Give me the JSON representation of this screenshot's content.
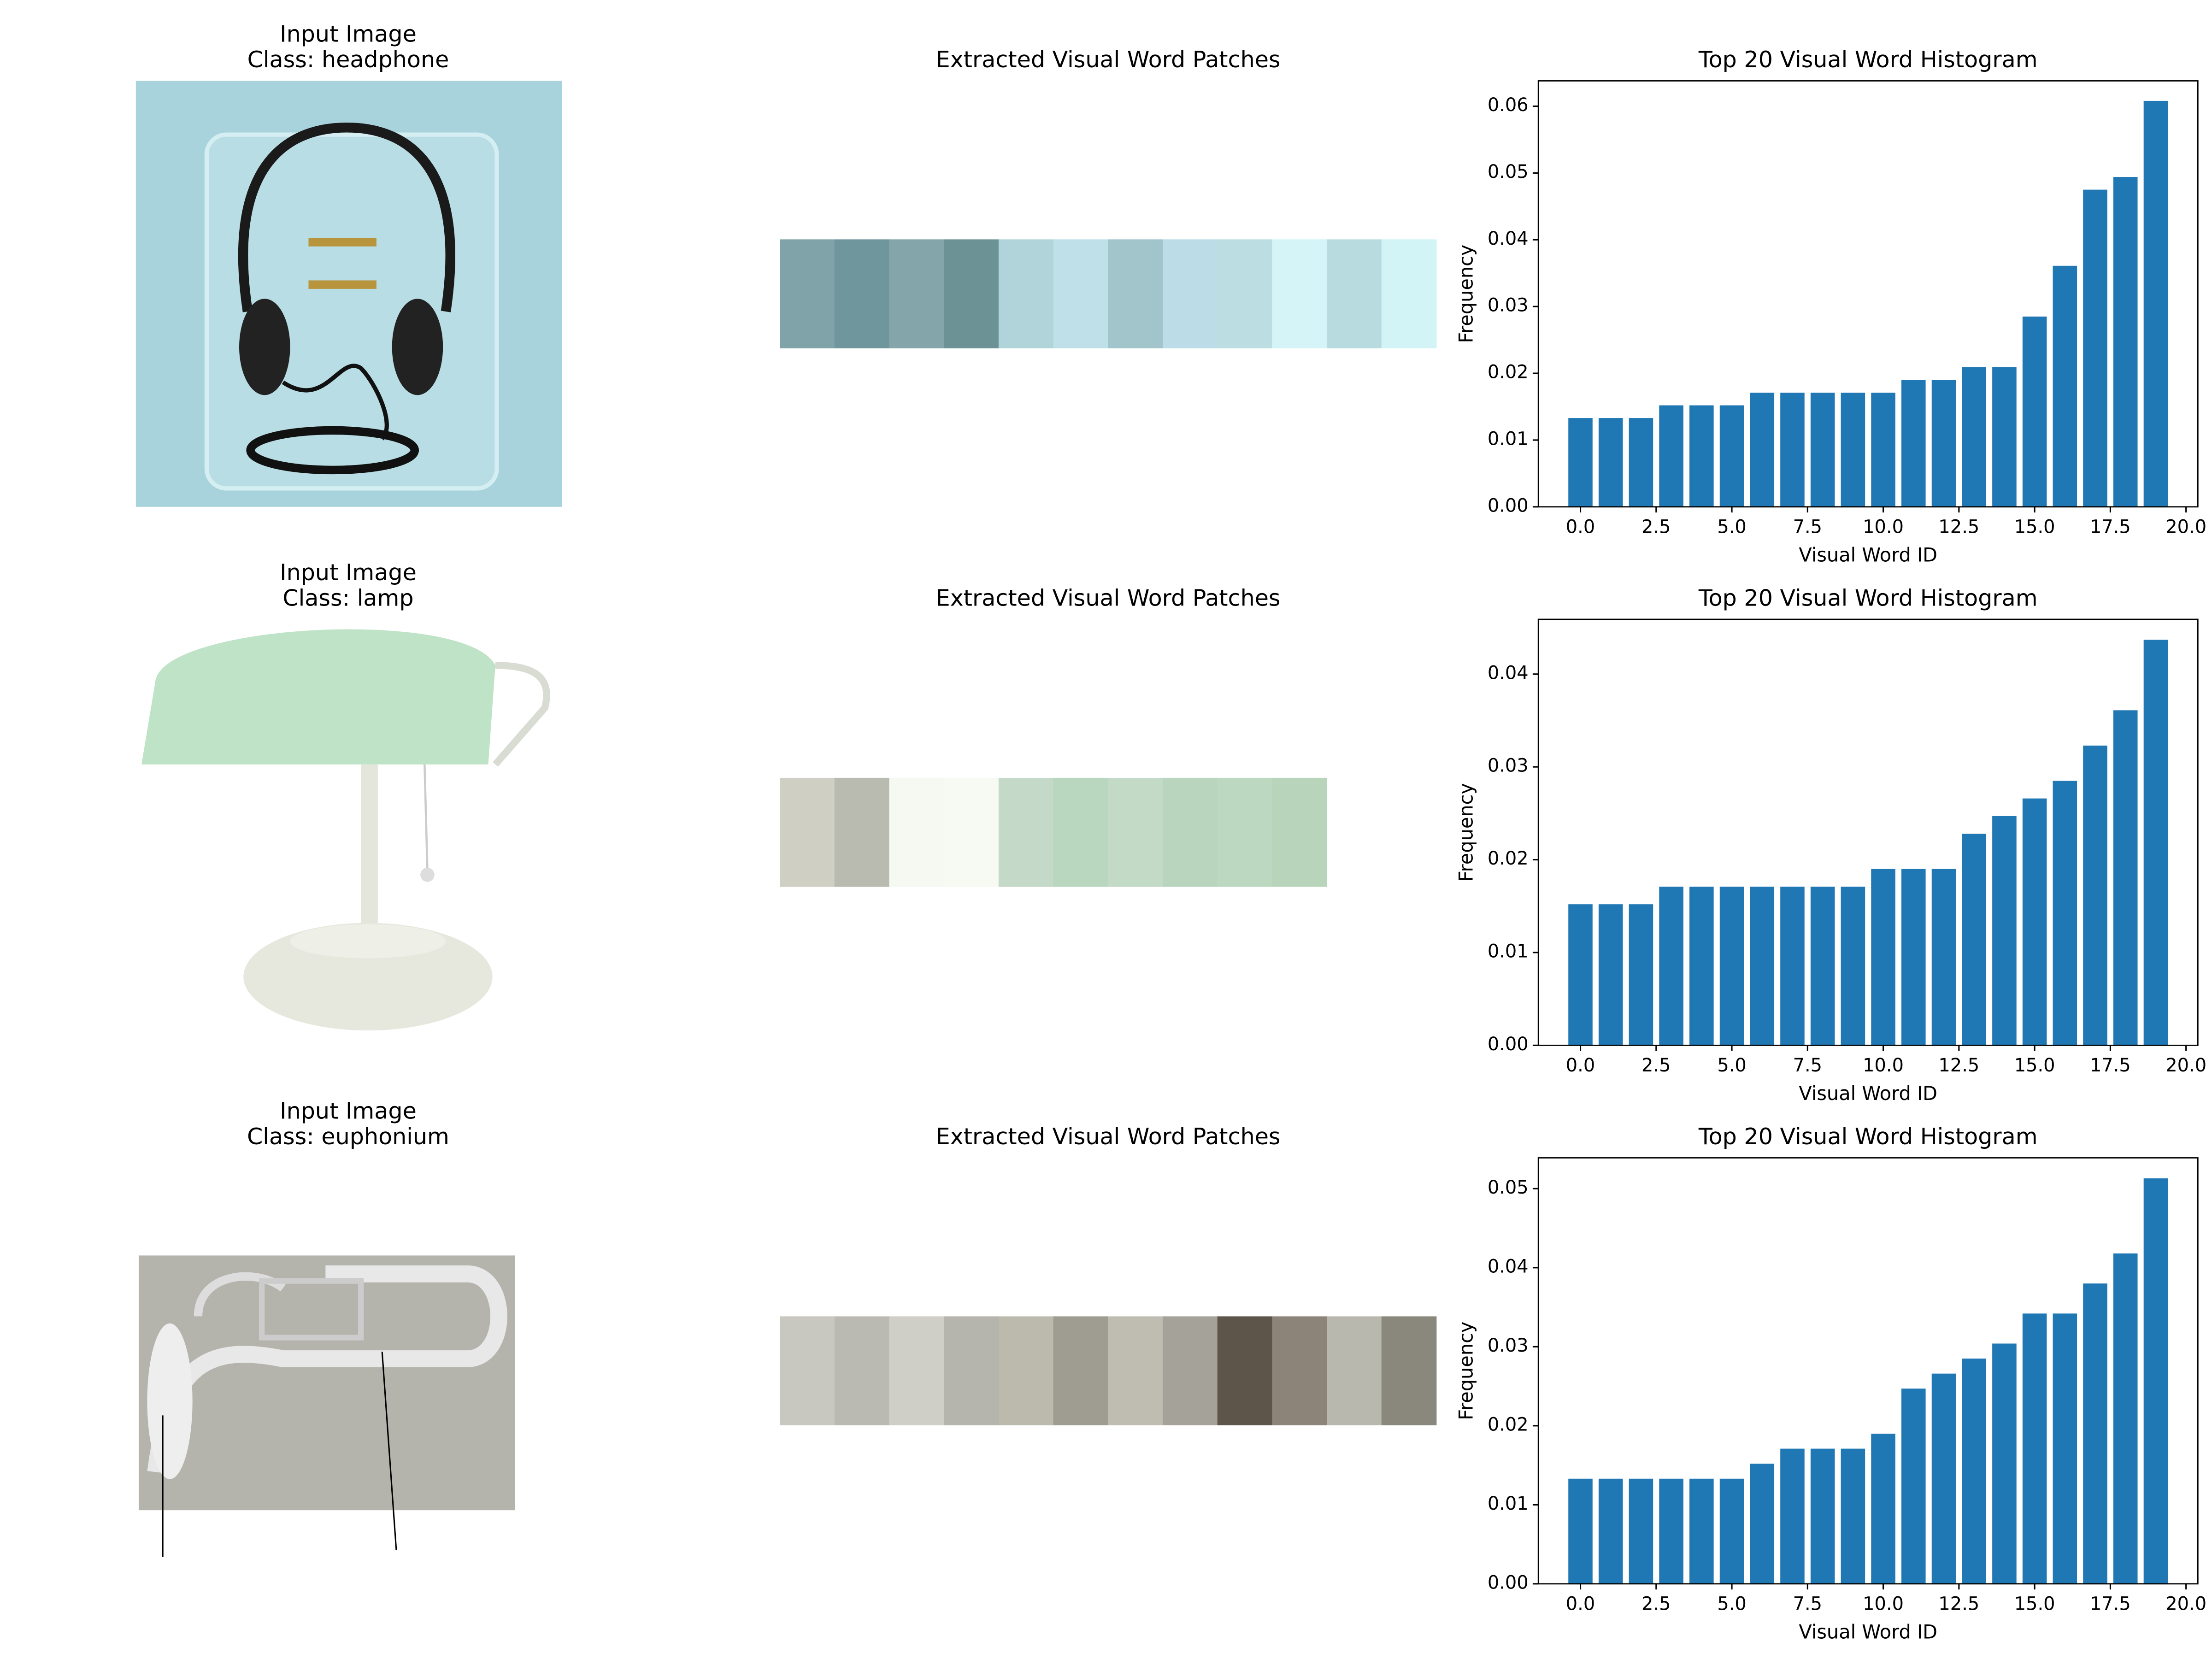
{
  "rows": [
    {
      "input_title": "Input Image",
      "class_label": "Class: headphone",
      "patches_title": "Extracted Visual Word Patches",
      "patch_colors": [
        "#7fa3a8",
        "#6f969c",
        "#84a6aa",
        "#6d9296",
        "#b1d3da",
        "#bfe0e8",
        "#a2c4cb",
        "#bcdce7",
        "#bcdee2",
        "#d5f4f7",
        "#b8dbe0",
        "#d2f4f7"
      ]
    },
    {
      "input_title": "Input Image",
      "class_label": "Class: lamp",
      "patches_title": "Extracted Visual Word Patches",
      "patch_colors": [
        "#cfcfc4",
        "#b9bab0",
        "#f6f8f2",
        "#f7f9f3",
        "#c5d9c8",
        "#b9d6be",
        "#c3dac6",
        "#b9d5bd",
        "#bcd8c0",
        "#b8d5bc"
      ]
    },
    {
      "input_title": "Input Image",
      "class_label": "Class: euphonium",
      "patches_title": "Extracted Visual Word Patches",
      "patch_colors": [
        "#c8c8c0",
        "#bbbab2",
        "#cfcfc8",
        "#b5b4ad",
        "#bcb9ad",
        "#9f9c92",
        "#bfbcb2",
        "#a5a299",
        "#5d5549",
        "#8c8479",
        "#b9b8ae",
        "#8a887c"
      ]
    }
  ],
  "chart_data": [
    {
      "type": "bar",
      "title": "Top 20 Visual Word Histogram",
      "xlabel": "Visual Word ID",
      "ylabel": "Frequency",
      "color": "#1f77b4",
      "x": [
        0,
        1,
        2,
        3,
        4,
        5,
        6,
        7,
        8,
        9,
        10,
        11,
        12,
        13,
        14,
        15,
        16,
        17,
        18,
        19
      ],
      "values": [
        0.0133,
        0.0133,
        0.0133,
        0.0152,
        0.0152,
        0.0152,
        0.0171,
        0.0171,
        0.0171,
        0.0171,
        0.0171,
        0.019,
        0.019,
        0.0209,
        0.0209,
        0.0285,
        0.0361,
        0.0475,
        0.0494,
        0.0608
      ],
      "xlim": [
        -1.39,
        20.39
      ],
      "ylim": [
        0,
        0.0638
      ],
      "xticks": [
        {
          "value": 0,
          "label": "0.0"
        },
        2.5,
        {
          "value": 5,
          "label": "5.0"
        },
        7.5,
        {
          "value": 10,
          "label": "10.0"
        },
        12.5,
        {
          "value": 15,
          "label": "15.0"
        },
        17.5,
        {
          "value": 20,
          "label": "20.0"
        }
      ],
      "yticks": [
        {
          "value": 0,
          "label": "0.00"
        },
        0.01,
        0.02,
        0.03,
        0.04,
        0.05,
        0.06
      ]
    },
    {
      "type": "bar",
      "title": "Top 20 Visual Word Histogram",
      "xlabel": "Visual Word ID",
      "ylabel": "Frequency",
      "color": "#1f77b4",
      "x": [
        0,
        1,
        2,
        3,
        4,
        5,
        6,
        7,
        8,
        9,
        10,
        11,
        12,
        13,
        14,
        15,
        16,
        17,
        18,
        19
      ],
      "values": [
        0.0152,
        0.0152,
        0.0152,
        0.0171,
        0.0171,
        0.0171,
        0.0171,
        0.0171,
        0.0171,
        0.0171,
        0.019,
        0.019,
        0.019,
        0.0228,
        0.0247,
        0.0266,
        0.0285,
        0.0323,
        0.0361,
        0.0437
      ],
      "xlim": [
        -1.39,
        20.39
      ],
      "ylim": [
        0,
        0.0459
      ],
      "xticks": [
        {
          "value": 0,
          "label": "0.0"
        },
        2.5,
        {
          "value": 5,
          "label": "5.0"
        },
        7.5,
        {
          "value": 10,
          "label": "10.0"
        },
        12.5,
        {
          "value": 15,
          "label": "15.0"
        },
        17.5,
        {
          "value": 20,
          "label": "20.0"
        }
      ],
      "yticks": [
        {
          "value": 0,
          "label": "0.00"
        },
        0.01,
        0.02,
        0.03,
        0.04
      ]
    },
    {
      "type": "bar",
      "title": "Top 20 Visual Word Histogram",
      "xlabel": "Visual Word ID",
      "ylabel": "Frequency",
      "color": "#1f77b4",
      "x": [
        0,
        1,
        2,
        3,
        4,
        5,
        6,
        7,
        8,
        9,
        10,
        11,
        12,
        13,
        14,
        15,
        16,
        17,
        18,
        19
      ],
      "values": [
        0.0133,
        0.0133,
        0.0133,
        0.0133,
        0.0133,
        0.0133,
        0.0152,
        0.0171,
        0.0171,
        0.0171,
        0.019,
        0.0247,
        0.0266,
        0.0285,
        0.0304,
        0.0342,
        0.0342,
        0.038,
        0.0418,
        0.0513
      ],
      "xlim": [
        -1.39,
        20.39
      ],
      "ylim": [
        0,
        0.0539
      ],
      "xticks": [
        {
          "value": 0,
          "label": "0.0"
        },
        2.5,
        {
          "value": 5,
          "label": "5.0"
        },
        7.5,
        {
          "value": 10,
          "label": "10.0"
        },
        12.5,
        {
          "value": 15,
          "label": "15.0"
        },
        17.5,
        {
          "value": 20,
          "label": "20.0"
        }
      ],
      "yticks": [
        {
          "value": 0,
          "label": "0.00"
        },
        0.01,
        0.02,
        0.03,
        0.04,
        0.05
      ]
    }
  ]
}
